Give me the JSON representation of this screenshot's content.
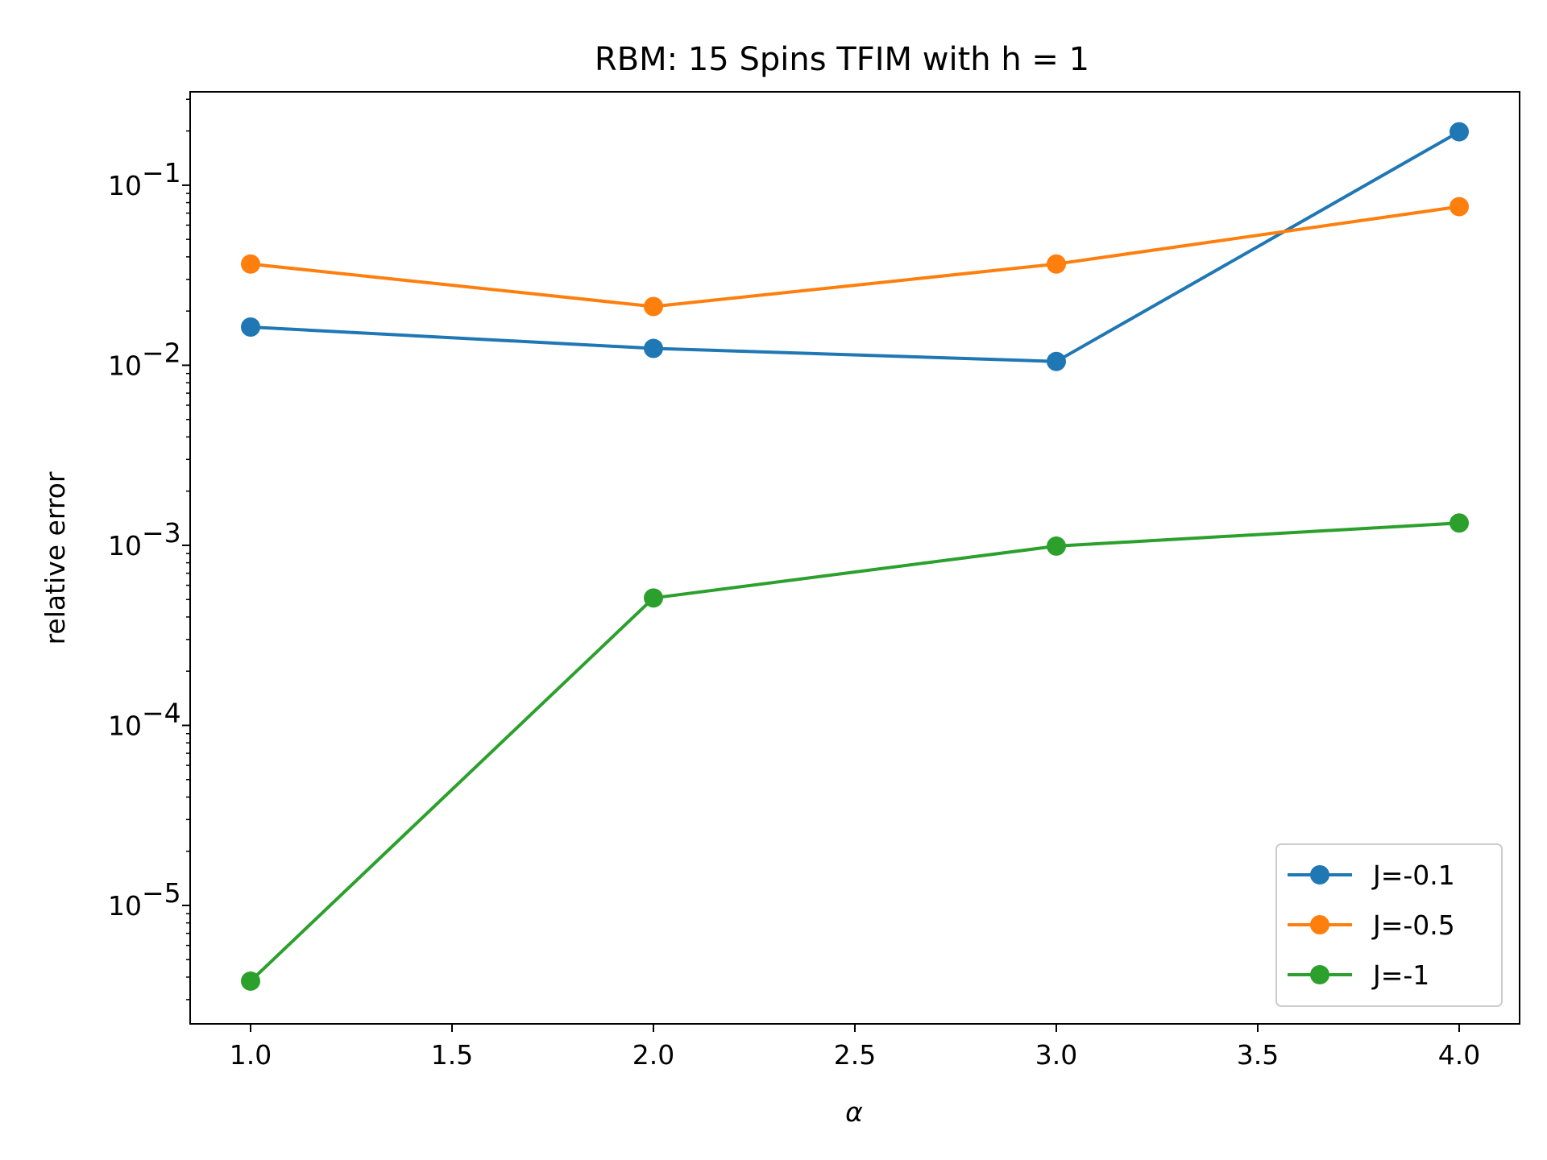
{
  "chart_data": {
    "type": "line",
    "title": "RBM: 15 Spins TFIM with h = 1",
    "xlabel": "α",
    "ylabel": "relative error",
    "yscale": "log",
    "xlim": [
      0.85,
      4.15
    ],
    "ylim": [
      2.2e-06,
      0.33
    ],
    "xticks": [
      1.0,
      1.5,
      2.0,
      2.5,
      3.0,
      3.5,
      4.0
    ],
    "xtick_labels": [
      "1.0",
      "1.5",
      "2.0",
      "2.5",
      "3.0",
      "3.5",
      "4.0"
    ],
    "yticks": [
      1e-05,
      0.0001,
      0.001,
      0.01,
      0.1
    ],
    "ytick_labels": [
      {
        "base": "10",
        "exp": "−5"
      },
      {
        "base": "10",
        "exp": "−4"
      },
      {
        "base": "10",
        "exp": "−3"
      },
      {
        "base": "10",
        "exp": "−2"
      },
      {
        "base": "10",
        "exp": "−1"
      }
    ],
    "grid": false,
    "legend_position": "bottom-right",
    "x": [
      1.0,
      2.0,
      3.0,
      4.0
    ],
    "series": [
      {
        "name": "J=-0.1",
        "color": "#1f77b4",
        "values": [
          0.0163,
          0.0124,
          0.0105,
          0.198
        ]
      },
      {
        "name": "J=-0.5",
        "color": "#ff7f0e",
        "values": [
          0.0365,
          0.0212,
          0.0365,
          0.076
        ]
      },
      {
        "name": "J=-1",
        "color": "#2ca02c",
        "values": [
          3.8e-06,
          0.00051,
          0.00099,
          0.00133
        ]
      }
    ]
  }
}
